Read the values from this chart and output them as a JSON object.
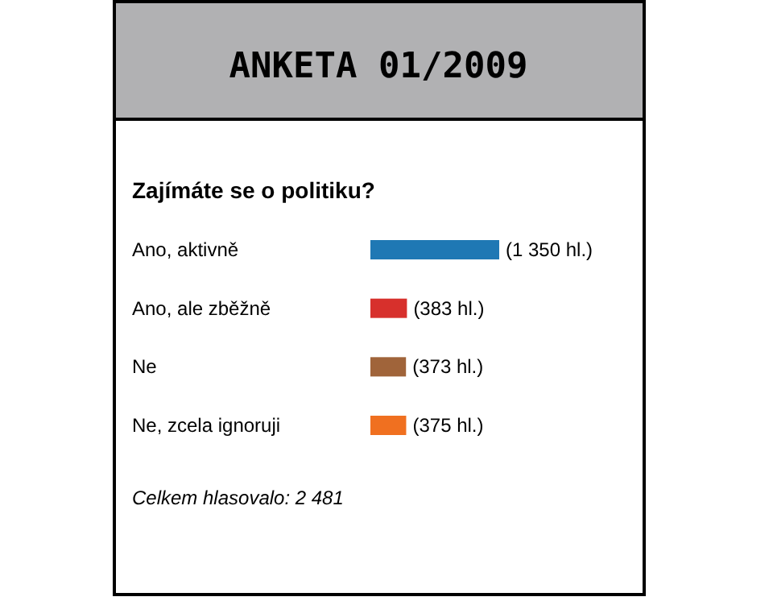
{
  "chart_data": {
    "type": "bar",
    "orientation": "horizontal",
    "title": "ANKETA 01/2009",
    "subtitle": "Zajímáte se o politiku?",
    "categories": [
      "Ano, aktivně",
      "Ano, ale zběžně",
      "Ne",
      "Ne, zcela ignoruji"
    ],
    "values": [
      1350,
      383,
      373,
      375
    ],
    "colors": [
      "#1f78b4",
      "#d7302c",
      "#a0643a",
      "#f07020"
    ],
    "value_labels": [
      "(1 350 hl.)",
      "(383 hl.)",
      "(373 hl.)",
      "(375 hl.)"
    ],
    "xlim": [
      0,
      1350
    ],
    "annotations": [
      "Celkem hlasovalo: 2 481"
    ]
  }
}
